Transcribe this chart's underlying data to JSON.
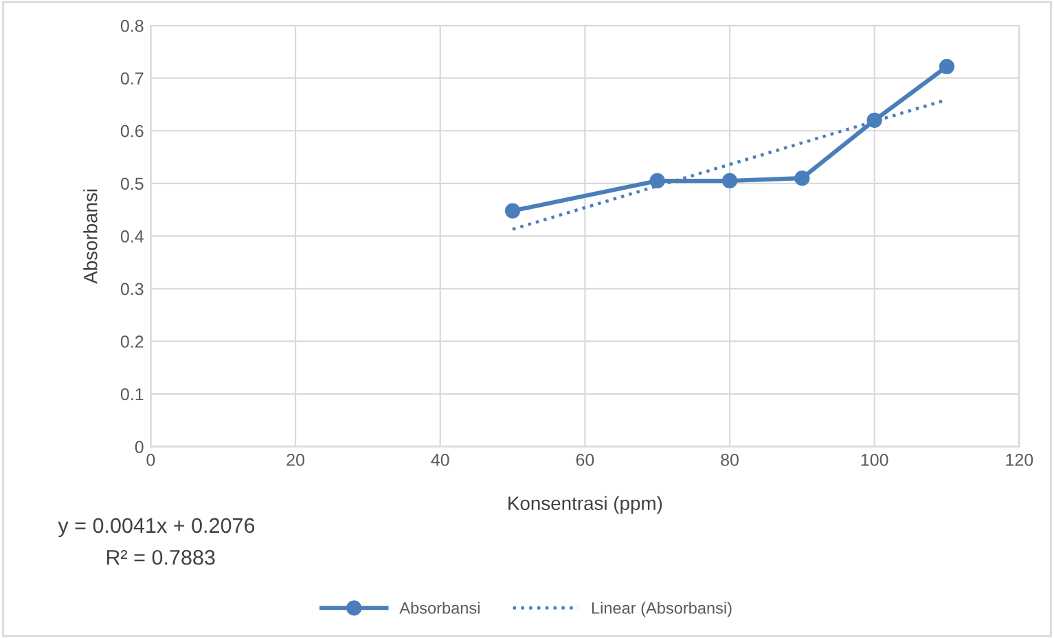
{
  "chart_data": {
    "type": "line",
    "xlabel": "Konsentrasi (ppm)",
    "ylabel": "Absorbansi",
    "series": [
      {
        "name": "Absorbansi",
        "color": "#4a7ebb",
        "marker": "circle",
        "line_style": "solid",
        "x": [
          50,
          70,
          80,
          90,
          100,
          110
        ],
        "values": [
          0.448,
          0.505,
          0.505,
          0.51,
          0.62,
          0.722
        ]
      },
      {
        "name": "Linear (Absorbansi)",
        "color": "#4a7ebb",
        "marker": "none",
        "line_style": "dotted",
        "x": [
          50,
          110
        ],
        "values": [
          0.413,
          0.659
        ]
      }
    ],
    "xlim": [
      0,
      120
    ],
    "xticks": [
      0,
      20,
      40,
      60,
      80,
      100,
      120
    ],
    "ylim": [
      0,
      0.8
    ],
    "yticks": [
      0,
      0.1,
      0.2,
      0.3,
      0.4,
      0.5,
      0.6,
      0.7,
      0.8
    ],
    "grid": true,
    "legend": "bottom",
    "annotations": [
      "y = 0.0041x + 0.2076",
      "R² = 0.7883"
    ]
  }
}
